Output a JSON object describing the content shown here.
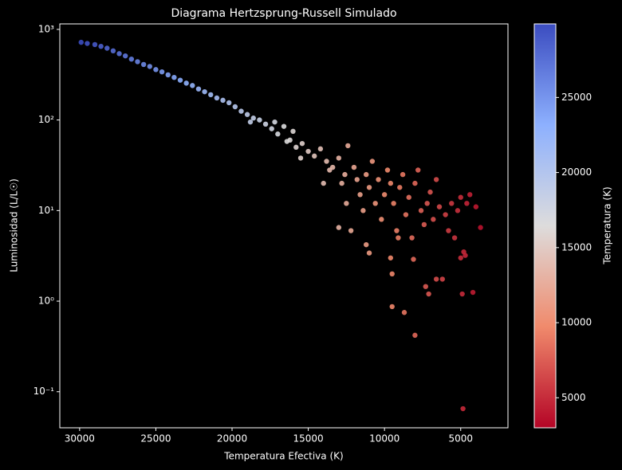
{
  "chart_data": {
    "type": "scatter",
    "title": "Diagrama Hertzsprung-Russell Simulado",
    "x_label": "Temperatura Efectiva (K)",
    "y_label": "Luminosidad (L/L☉)",
    "xlim": [
      31300,
      1900
    ],
    "xticks": [
      30000,
      25000,
      20000,
      15000,
      10000,
      5000
    ],
    "ylim": [
      0.04,
      1150
    ],
    "y_scale": "log",
    "yticks": [
      {
        "value": 0.1,
        "label": "10⁻¹"
      },
      {
        "value": 1,
        "label": "10⁰"
      },
      {
        "value": 10,
        "label": "10¹"
      },
      {
        "value": 100,
        "label": "10²"
      },
      {
        "value": 1000,
        "label": "10³"
      }
    ],
    "colorbar": {
      "label": "Temperatura (K)",
      "colormap": "coolwarm",
      "lim": [
        3000,
        29900
      ],
      "ticks": [
        5000,
        10000,
        15000,
        20000,
        25000
      ]
    },
    "x": [
      29900,
      29500,
      29000,
      28600,
      28200,
      27800,
      27400,
      27000,
      26600,
      26200,
      25800,
      25400,
      25000,
      24600,
      24200,
      23800,
      23400,
      23000,
      22600,
      22200,
      21800,
      21400,
      21000,
      20600,
      20200,
      19800,
      19400,
      19000,
      18600,
      18200,
      18800,
      17800,
      17400,
      17000,
      17200,
      16600,
      16200,
      16000,
      15800,
      15400,
      15000,
      14600,
      14200,
      13800,
      13400,
      13000,
      12600,
      12400,
      12800,
      12000,
      11800,
      11600,
      11400,
      11200,
      11000,
      10800,
      10600,
      10400,
      10200,
      10000,
      9800,
      9600,
      9400,
      9200,
      9000,
      8800,
      8600,
      8400,
      8200,
      8000,
      7800,
      7600,
      7400,
      7200,
      7000,
      6800,
      6600,
      6400,
      6200,
      6000,
      5800,
      5600,
      5400,
      5200,
      5000,
      4800,
      4600,
      4400,
      4200,
      4000,
      3700,
      4900,
      4850,
      8000,
      9500,
      8700,
      7300,
      7100,
      9500,
      8100,
      9600,
      11000,
      12200,
      13000,
      11200,
      9100,
      6600,
      5000,
      4700,
      12500,
      14000,
      15500,
      16400,
      13600
    ],
    "y": [
      720,
      700,
      680,
      650,
      620,
      580,
      540,
      510,
      470,
      440,
      410,
      390,
      360,
      340,
      315,
      295,
      275,
      255,
      240,
      220,
      205,
      190,
      175,
      165,
      155,
      140,
      125,
      115,
      105,
      100,
      95,
      90,
      80,
      70,
      95,
      85,
      60,
      75,
      50,
      55,
      45,
      40,
      48,
      35,
      30,
      38,
      25,
      52,
      20,
      30,
      22,
      15,
      10,
      25,
      18,
      35,
      12,
      22,
      8,
      15,
      28,
      20,
      12,
      6,
      18,
      25,
      9,
      14,
      5,
      20,
      28,
      10,
      7,
      12,
      16,
      8,
      22,
      11,
      1.75,
      9,
      6,
      12,
      5,
      10,
      14,
      3.5,
      12,
      15,
      1.25,
      11,
      6.5,
      1.2,
      0.065,
      0.42,
      0.87,
      0.75,
      1.45,
      1.2,
      2,
      2.9,
      3,
      3.4,
      6,
      6.5,
      4.2,
      5,
      1.75,
      3,
      3.2,
      12,
      20,
      38,
      58,
      28
    ]
  }
}
